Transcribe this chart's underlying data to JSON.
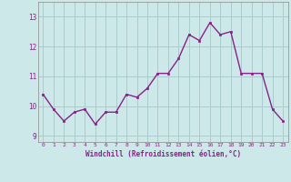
{
  "x": [
    0,
    1,
    2,
    3,
    4,
    5,
    6,
    7,
    8,
    9,
    10,
    11,
    12,
    13,
    14,
    15,
    16,
    17,
    18,
    19,
    20,
    21,
    22,
    23
  ],
  "y": [
    10.4,
    9.9,
    9.5,
    9.8,
    9.9,
    9.4,
    9.8,
    9.8,
    10.4,
    10.3,
    10.6,
    11.1,
    11.1,
    11.6,
    12.4,
    12.2,
    12.8,
    12.4,
    12.5,
    11.1,
    11.1,
    11.1,
    9.9,
    9.5
  ],
  "line_color": "#882288",
  "marker_color": "#882288",
  "bg_color": "#cce8e8",
  "grid_color": "#aacccc",
  "axis_label_color": "#882288",
  "tick_color": "#882288",
  "xlabel": "Windchill (Refroidissement éolien,°C)",
  "ylim": [
    8.8,
    13.5
  ],
  "xlim": [
    -0.5,
    23.5
  ],
  "yticks": [
    9,
    10,
    11,
    12,
    13
  ],
  "xticks": [
    0,
    1,
    2,
    3,
    4,
    5,
    6,
    7,
    8,
    9,
    10,
    11,
    12,
    13,
    14,
    15,
    16,
    17,
    18,
    19,
    20,
    21,
    22,
    23
  ]
}
